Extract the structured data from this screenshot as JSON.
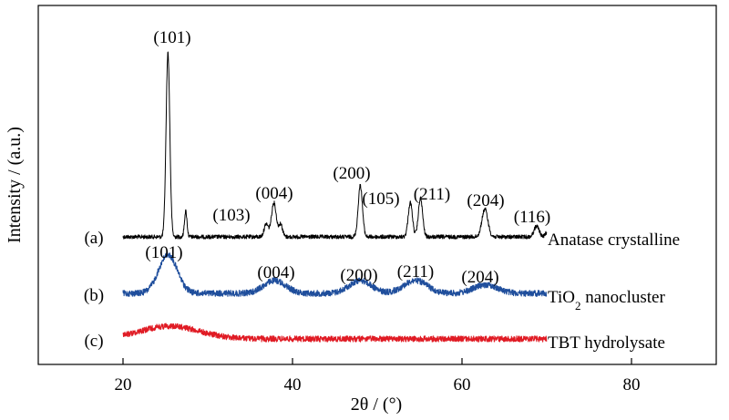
{
  "chart_data": {
    "type": "line",
    "title": "",
    "xlabel": "2θ / (°)",
    "ylabel": "Intensity / (a.u.)",
    "xlim": [
      10,
      90
    ],
    "xticks": [
      20,
      40,
      60,
      80
    ],
    "xtick_labels": [
      "20",
      "40",
      "60",
      "80"
    ],
    "yticks_shown": false,
    "grid": false,
    "legend": "none",
    "series": [
      {
        "letter": "(a)",
        "name": "Anatase crystalline",
        "color": "#000000",
        "peaks": [
          {
            "x": 25.3,
            "height": 86,
            "width": 0.22,
            "label": "(101)"
          },
          {
            "x": 27.4,
            "height": 12,
            "width": 0.15,
            "label": ""
          },
          {
            "x": 36.9,
            "height": 6,
            "width": 0.25,
            "label": "(103)"
          },
          {
            "x": 37.8,
            "height": 16,
            "width": 0.28,
            "label": "(004)"
          },
          {
            "x": 38.6,
            "height": 6,
            "width": 0.22,
            "label": ""
          },
          {
            "x": 48.0,
            "height": 24,
            "width": 0.25,
            "label": "(200)"
          },
          {
            "x": 53.9,
            "height": 16,
            "width": 0.25,
            "label": "(105)"
          },
          {
            "x": 55.1,
            "height": 18,
            "width": 0.25,
            "label": "(211)"
          },
          {
            "x": 62.7,
            "height": 13,
            "width": 0.35,
            "label": "(204)"
          },
          {
            "x": 68.8,
            "height": 5,
            "width": 0.3,
            "label": "(116)"
          },
          {
            "x": 70.3,
            "height": 4,
            "width": 0.3,
            "label": ""
          }
        ]
      },
      {
        "letter": "(b)",
        "name": "TiO2 nanocluster",
        "color": "#1f4e9c",
        "peaks": [
          {
            "x": 25.3,
            "height": 18,
            "width": 1.1,
            "label": "(101)"
          },
          {
            "x": 37.9,
            "height": 6,
            "width": 1.3,
            "label": "(004)"
          },
          {
            "x": 48.0,
            "height": 6,
            "width": 1.3,
            "label": "(200)"
          },
          {
            "x": 54.5,
            "height": 6,
            "width": 1.4,
            "label": "(211)"
          },
          {
            "x": 62.8,
            "height": 4,
            "width": 1.4,
            "label": "(204)"
          }
        ]
      },
      {
        "letter": "(c)",
        "name": "TBT hydrolysate",
        "color": "#e01b24",
        "peaks": [
          {
            "x": 25.5,
            "height": 6,
            "width": 3.5,
            "label": ""
          }
        ]
      }
    ]
  }
}
